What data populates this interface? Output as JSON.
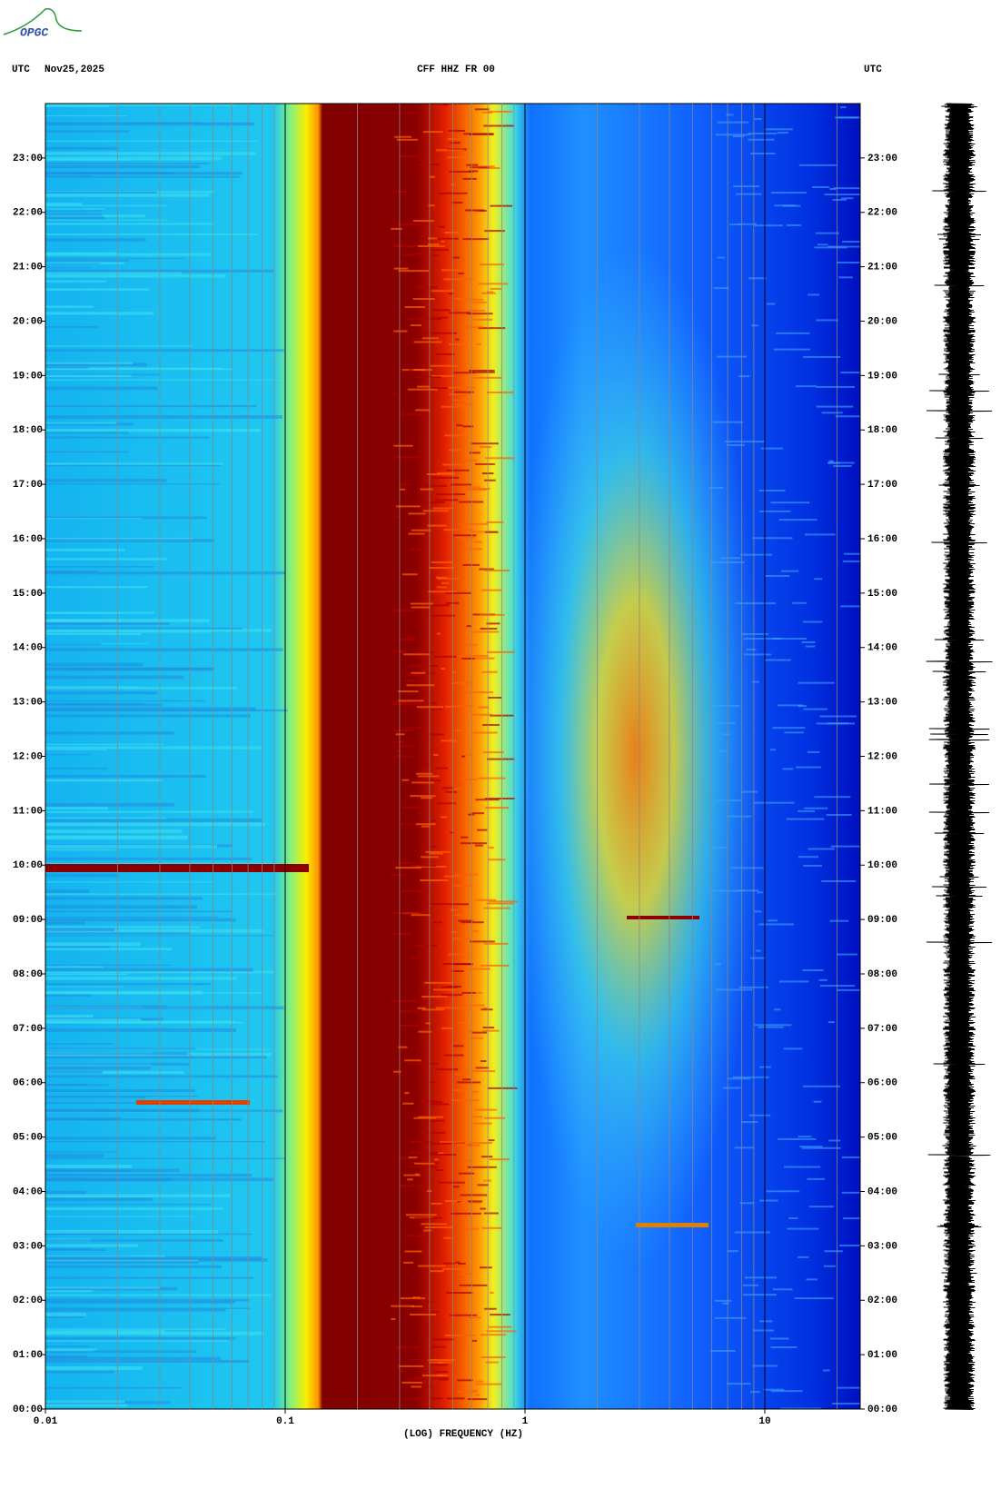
{
  "logo": "OPGC",
  "chart_data": {
    "type": "spectrogram",
    "title": "CFF HHZ FR 00",
    "left_label": "UTC",
    "date": "Nov25,2025",
    "right_label": "UTC",
    "x_label": "(LOG) FREQUENCY (HZ)",
    "xscale": "log",
    "xlim": [
      0.01,
      25
    ],
    "xticks": [
      0.01,
      0.1,
      1,
      10
    ],
    "xminorticks": [
      0.02,
      0.03,
      0.04,
      0.05,
      0.06,
      0.07,
      0.08,
      0.09,
      0.2,
      0.3,
      0.4,
      0.5,
      0.6,
      0.7,
      0.8,
      0.9,
      2,
      3,
      4,
      5,
      6,
      7,
      8,
      9,
      20
    ],
    "ylim": [
      0,
      24
    ],
    "yticks": [
      {
        "value": 0,
        "label": "00:00"
      },
      {
        "value": 1,
        "label": "01:00"
      },
      {
        "value": 2,
        "label": "02:00"
      },
      {
        "value": 3,
        "label": "03:00"
      },
      {
        "value": 4,
        "label": "04:00"
      },
      {
        "value": 5,
        "label": "05:00"
      },
      {
        "value": 6,
        "label": "06:00"
      },
      {
        "value": 7,
        "label": "07:00"
      },
      {
        "value": 8,
        "label": "08:00"
      },
      {
        "value": 9,
        "label": "09:00"
      },
      {
        "value": 10,
        "label": "10:00"
      },
      {
        "value": 11,
        "label": "11:00"
      },
      {
        "value": 12,
        "label": "12:00"
      },
      {
        "value": 13,
        "label": "13:00"
      },
      {
        "value": 14,
        "label": "14:00"
      },
      {
        "value": 15,
        "label": "15:00"
      },
      {
        "value": 16,
        "label": "16:00"
      },
      {
        "value": 17,
        "label": "17:00"
      },
      {
        "value": 18,
        "label": "18:00"
      },
      {
        "value": 19,
        "label": "19:00"
      },
      {
        "value": 20,
        "label": "20:00"
      },
      {
        "value": 21,
        "label": "21:00"
      },
      {
        "value": 22,
        "label": "22:00"
      },
      {
        "value": 23,
        "label": "23:00"
      }
    ],
    "grid": true
  }
}
